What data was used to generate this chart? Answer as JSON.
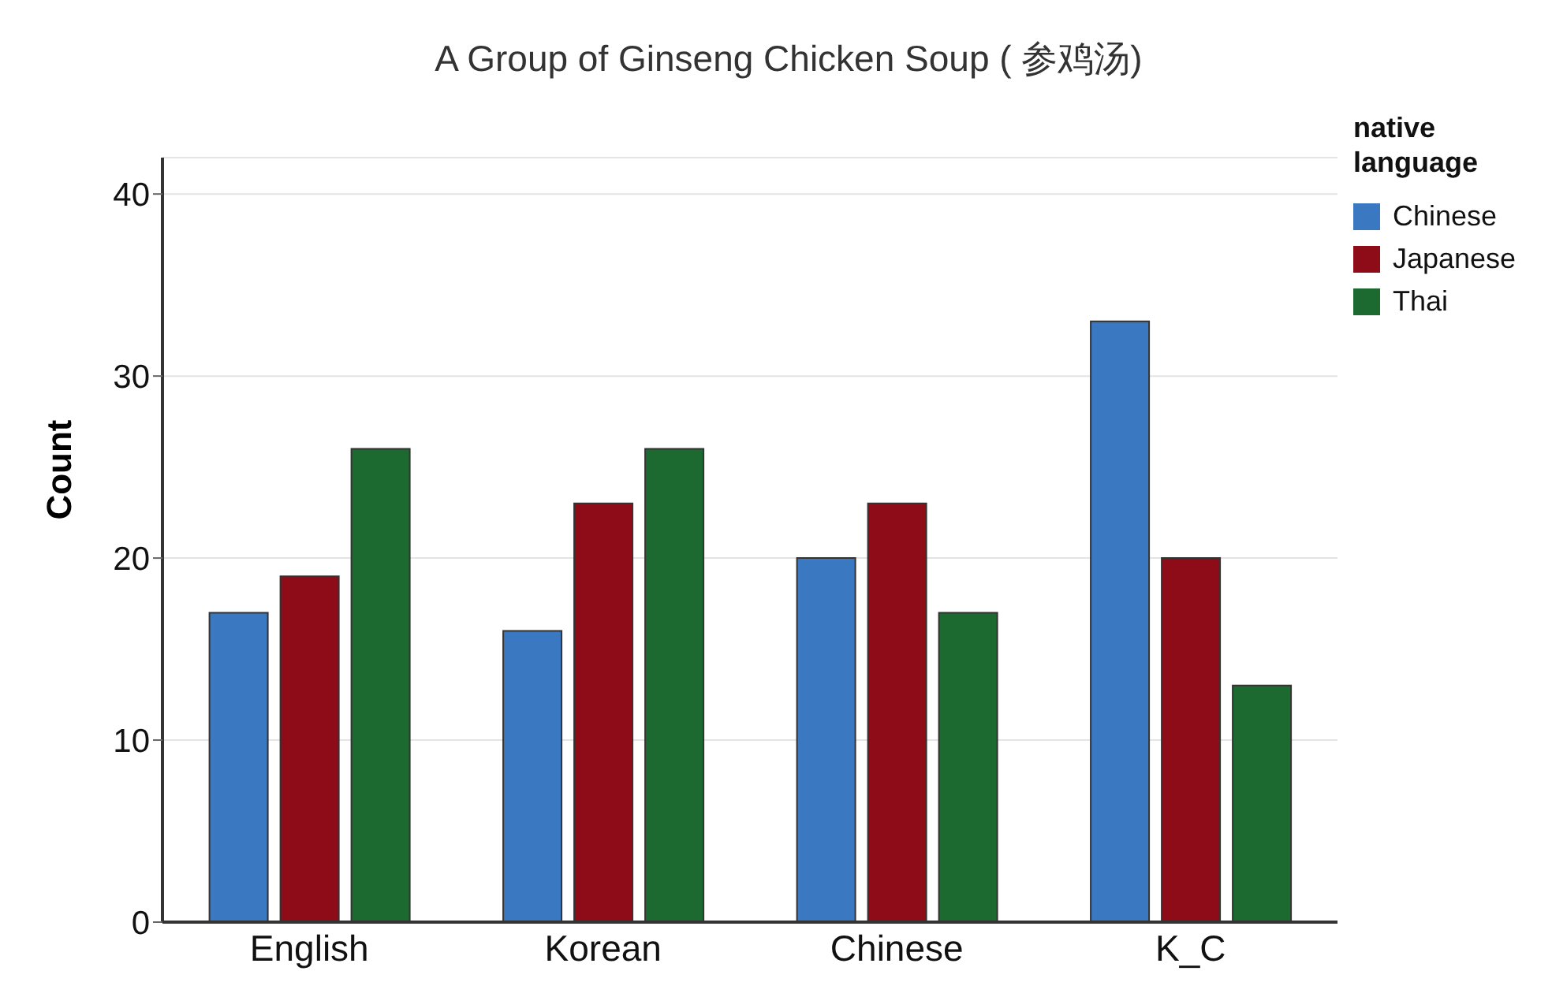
{
  "chart_data": {
    "type": "bar",
    "title": "A Group  of Ginseng Chicken Soup ( 参鸡汤)",
    "ylabel": "Count",
    "legend_title": "native language",
    "categories": [
      "English",
      "Korean",
      "Chinese",
      "K_C"
    ],
    "series": [
      {
        "name": "Chinese",
        "color": "#3a78c2",
        "values": [
          17,
          16,
          20,
          33
        ]
      },
      {
        "name": "Japanese",
        "color": "#8e0c17",
        "values": [
          19,
          23,
          23,
          20
        ]
      },
      {
        "name": "Thai",
        "color": "#1c6a30",
        "values": [
          26,
          26,
          17,
          13
        ]
      }
    ],
    "ylim": [
      0,
      42
    ],
    "yticks": [
      0,
      10,
      20,
      30,
      40
    ],
    "grid": "y",
    "legend": "top right"
  }
}
